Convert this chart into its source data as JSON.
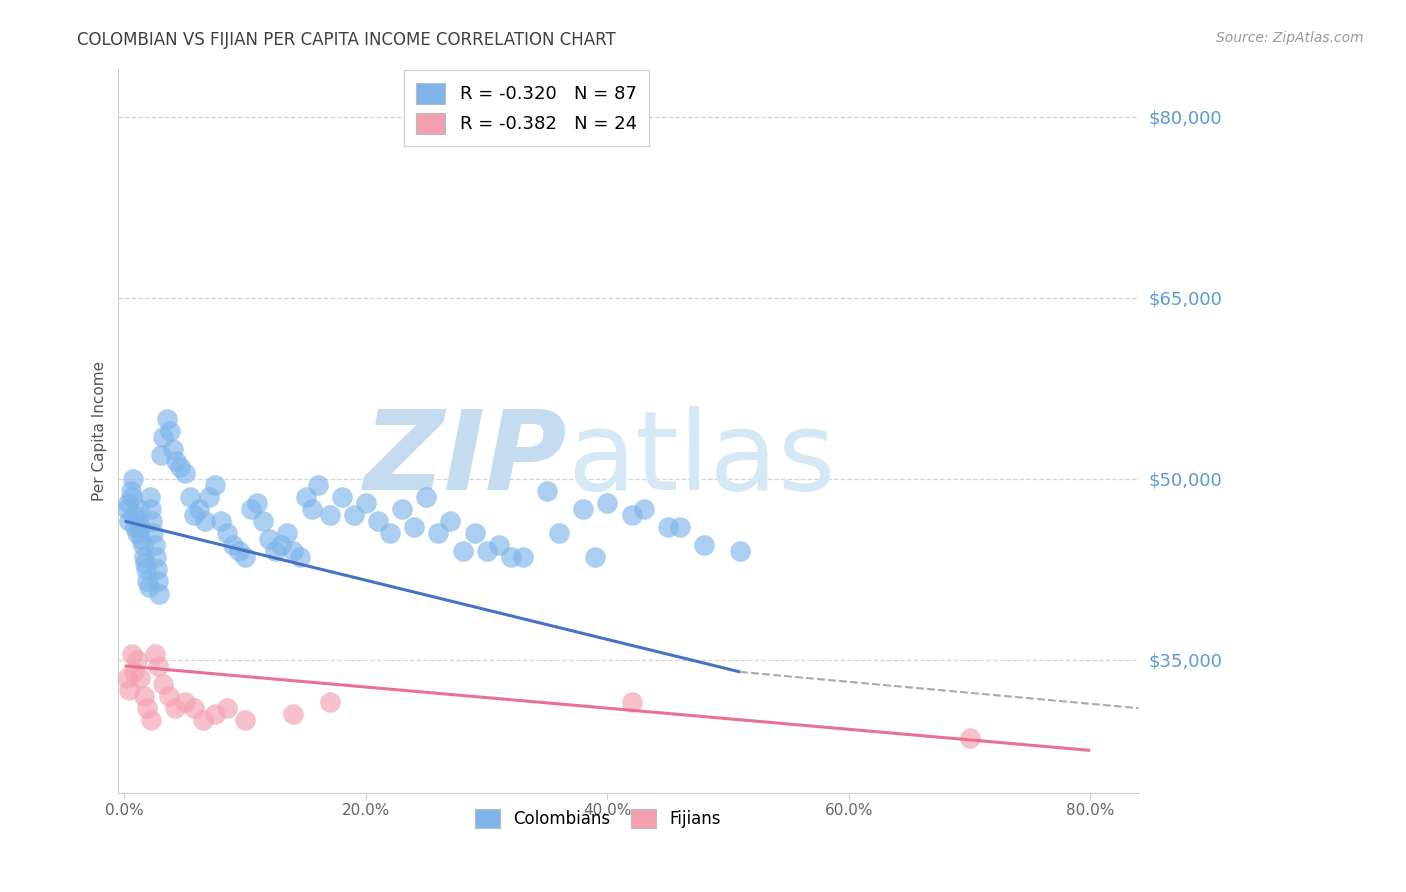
{
  "title": "COLOMBIAN VS FIJIAN PER CAPITA INCOME CORRELATION CHART",
  "source": "Source: ZipAtlas.com",
  "ylabel": "Per Capita Income",
  "xlabel_ticks": [
    "0.0%",
    "20.0%",
    "40.0%",
    "60.0%",
    "80.0%"
  ],
  "xlabel_vals": [
    0.0,
    20.0,
    40.0,
    60.0,
    80.0
  ],
  "yticks": [
    35000,
    50000,
    65000,
    80000
  ],
  "ytick_labels": [
    "$35,000",
    "$50,000",
    "$65,000",
    "$80,000"
  ],
  "ymin": 24000,
  "ymax": 84000,
  "xmin": -0.5,
  "xmax": 84.0,
  "colombian_R": -0.32,
  "colombian_N": 87,
  "fijian_R": -0.382,
  "fijian_N": 24,
  "blue_color": "#7EB4EA",
  "pink_color": "#F4A0B0",
  "trend_blue": "#4472C4",
  "trend_pink": "#E87090",
  "trend_dash": "#AAAAAA",
  "watermark": "ZIPatlas",
  "watermark_color": "#D8E8F5",
  "title_color": "#404040",
  "source_color": "#999999",
  "ytick_color": "#5B9BD5",
  "grid_color": "#CCCCCC",
  "colombian_x": [
    0.2,
    0.3,
    0.4,
    0.5,
    0.6,
    0.7,
    0.8,
    0.9,
    1.0,
    1.1,
    1.2,
    1.3,
    1.4,
    1.5,
    1.6,
    1.7,
    1.8,
    1.9,
    2.0,
    2.1,
    2.2,
    2.3,
    2.4,
    2.5,
    2.6,
    2.7,
    2.8,
    2.9,
    3.0,
    3.2,
    3.5,
    3.8,
    4.0,
    4.3,
    4.6,
    5.0,
    5.4,
    5.8,
    6.2,
    6.7,
    7.0,
    7.5,
    8.0,
    8.5,
    9.0,
    9.5,
    10.0,
    10.5,
    11.0,
    11.5,
    12.0,
    12.5,
    13.0,
    13.5,
    14.0,
    14.5,
    15.0,
    15.5,
    16.0,
    17.0,
    18.0,
    19.0,
    20.0,
    21.0,
    22.0,
    23.0,
    24.0,
    25.0,
    27.0,
    29.0,
    31.0,
    33.0,
    36.0,
    39.0,
    42.0,
    45.0,
    48.0,
    51.0,
    40.0,
    43.0,
    46.0,
    35.0,
    38.0,
    30.0,
    26.0,
    28.0,
    32.0
  ],
  "colombian_y": [
    47500,
    48000,
    46500,
    49000,
    48500,
    50000,
    47000,
    46000,
    45500,
    46500,
    47500,
    46000,
    45000,
    44500,
    43500,
    43000,
    42500,
    41500,
    41000,
    48500,
    47500,
    46500,
    45500,
    44500,
    43500,
    42500,
    41500,
    40500,
    52000,
    53500,
    55000,
    54000,
    52500,
    51500,
    51000,
    50500,
    48500,
    47000,
    47500,
    46500,
    48500,
    49500,
    46500,
    45500,
    44500,
    44000,
    43500,
    47500,
    48000,
    46500,
    45000,
    44000,
    44500,
    45500,
    44000,
    43500,
    48500,
    47500,
    49500,
    47000,
    48500,
    47000,
    48000,
    46500,
    45500,
    47500,
    46000,
    48500,
    46500,
    45500,
    44500,
    43500,
    45500,
    43500,
    47000,
    46000,
    44500,
    44000,
    48000,
    47500,
    46000,
    49000,
    47500,
    44000,
    45500,
    44000,
    43500
  ],
  "fijian_x": [
    0.2,
    0.4,
    0.6,
    0.8,
    1.0,
    1.3,
    1.6,
    1.9,
    2.2,
    2.5,
    2.8,
    3.2,
    3.7,
    4.2,
    5.0,
    5.8,
    6.5,
    7.5,
    8.5,
    10.0,
    14.0,
    17.0,
    42.0,
    70.0
  ],
  "fijian_y": [
    33500,
    32500,
    35500,
    34000,
    35000,
    33500,
    32000,
    31000,
    30000,
    35500,
    34500,
    33000,
    32000,
    31000,
    31500,
    31000,
    30000,
    30500,
    31000,
    30000,
    30500,
    31500,
    31500,
    28500
  ],
  "colombian_trend_x": [
    0.0,
    51.0
  ],
  "colombian_trend_y": [
    46500,
    34000
  ],
  "fijian_trend_x": [
    0.0,
    80.0
  ],
  "fijian_trend_y": [
    34500,
    27500
  ],
  "dash_trend_x": [
    51.0,
    84.0
  ],
  "dash_trend_y": [
    34000,
    31000
  ]
}
